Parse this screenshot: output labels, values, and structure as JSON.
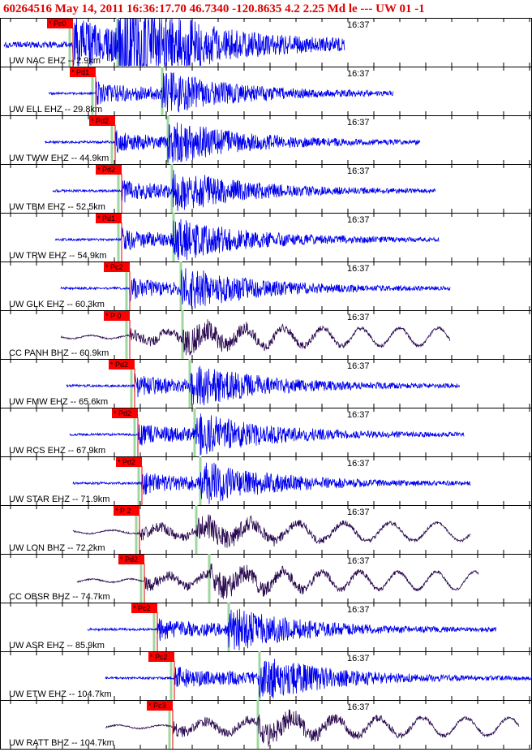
{
  "header": {
    "title": "60264516 May 14, 2011 16:36:17.70    46.7340 -120.8635  4.2 2.25 Md le --- UW 01  -1"
  },
  "panels": [
    {
      "station": "UW NAC EHZ -- 2.9km",
      "pick": "* Pc0",
      "time": "16:37"
    },
    {
      "station": "UW ELL EHZ -- 29.8km",
      "pick": "* Pd1",
      "time": "16:37"
    },
    {
      "station": "UW TWW EHZ -- 44.9km",
      "pick": "* Pd2",
      "time": "16:37"
    },
    {
      "station": "UW TBM EHZ -- 52.5km",
      "pick": "* Pd2",
      "time": "16:37"
    },
    {
      "station": "UW TRW EHZ -- 54.9km",
      "pick": "* Pd1",
      "time": "16:37"
    },
    {
      "station": "UW GLK EHZ -- 60.3km",
      "pick": "* Pc2",
      "time": "16:37"
    },
    {
      "station": "CC PANH BHZ -- 60.9km",
      "pick": "* P 0",
      "time": "16:37"
    },
    {
      "station": "UW FMW EHZ -- 65.6km",
      "pick": "* Pd2",
      "time": "16:37"
    },
    {
      "station": "UW RCS EHZ -- 67.9km",
      "pick": "* Pd2",
      "time": "16:37"
    },
    {
      "station": "UW STAR EHZ -- 71.9km",
      "pick": "* Pd2",
      "time": "16:37"
    },
    {
      "station": "UW LON BHZ -- 72.2km",
      "pick": "* P 2",
      "time": "16:37"
    },
    {
      "station": "CC OBSR BHZ -- 74.7km",
      "pick": "* Pd2",
      "time": "16:37"
    },
    {
      "station": "UW ASR EHZ -- 85.9km",
      "pick": "* Pc2",
      "time": "16:37"
    },
    {
      "station": "UW ETW EHZ -- 104.7km",
      "pick": "* Pc2",
      "time": "16:37"
    },
    {
      "station": "UW RATT BHZ -- 104.7km",
      "pick": "* Pc3",
      "time": "16:37"
    }
  ]
}
